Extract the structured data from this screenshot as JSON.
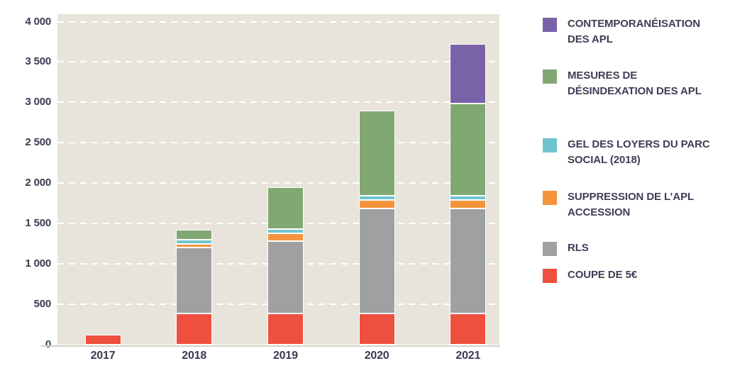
{
  "chart_data": {
    "type": "bar",
    "stacked": true,
    "title": "",
    "xlabel": "",
    "ylabel": "",
    "x": [
      "2017",
      "2018",
      "2019",
      "2020",
      "2021"
    ],
    "series": [
      {
        "name": "COUPE DE 5€",
        "color": "#EF4F3E",
        "values": [
          120,
          390,
          390,
          390,
          390
        ]
      },
      {
        "name": "RLS",
        "color": "#9EA0A2",
        "values": [
          0,
          810,
          890,
          1300,
          1300
        ]
      },
      {
        "name": "SUPPRESSION DE L’APL ACCESSION",
        "color": "#F4943D",
        "values": [
          0,
          50,
          100,
          100,
          100
        ]
      },
      {
        "name": "GEL DES LOYERS DU PARC SOCIAL (2018)",
        "color": "#6FC5CF",
        "values": [
          0,
          50,
          50,
          50,
          50
        ]
      },
      {
        "name": "MESURES DE DÉSINDEXATION DES APL",
        "color": "#81A873",
        "values": [
          0,
          120,
          520,
          1060,
          1150
        ]
      },
      {
        "name": "CONTEMPORANÉISATION DES APL",
        "color": "#7A62A8",
        "values": [
          0,
          0,
          0,
          0,
          730
        ]
      }
    ],
    "totals": [
      120,
      1420,
      1950,
      2900,
      3720
    ],
    "ylim": [
      0,
      4000
    ],
    "yticks": [
      {
        "value": 0,
        "label": "0"
      },
      {
        "value": 500,
        "label": "500"
      },
      {
        "value": 1000,
        "label": "1 000"
      },
      {
        "value": 1500,
        "label": "1 500"
      },
      {
        "value": 2000,
        "label": "2 000"
      },
      {
        "value": 2500,
        "label": "2 500"
      },
      {
        "value": 3000,
        "label": "3 000"
      },
      {
        "value": 3500,
        "label": "3 500"
      },
      {
        "value": 4000,
        "label": "4 000"
      }
    ],
    "grid": "horizontal-dashed-white",
    "plot_background": "#E8E4DB",
    "axis_line_color": "#D6D2CA",
    "text_color": "#3B3B51",
    "legend_position": "right"
  },
  "legend": {
    "items": [
      {
        "label": "CONTEMPORANÉISATION DES APL",
        "color": "#7A62A8"
      },
      {
        "label": "MESURES DE DÉSINDEXATION DES APL",
        "color": "#81A873"
      },
      {
        "label": "GEL DES LOYERS DU PARC SOCIAL (2018)",
        "color": "#6FC5CF"
      },
      {
        "label": "SUPPRESSION DE L’APL ACCESSION",
        "color": "#F4943D"
      },
      {
        "label": "RLS",
        "color": "#9EA0A2"
      },
      {
        "label": "COUPE DE 5€",
        "color": "#EF4F3E"
      }
    ]
  }
}
